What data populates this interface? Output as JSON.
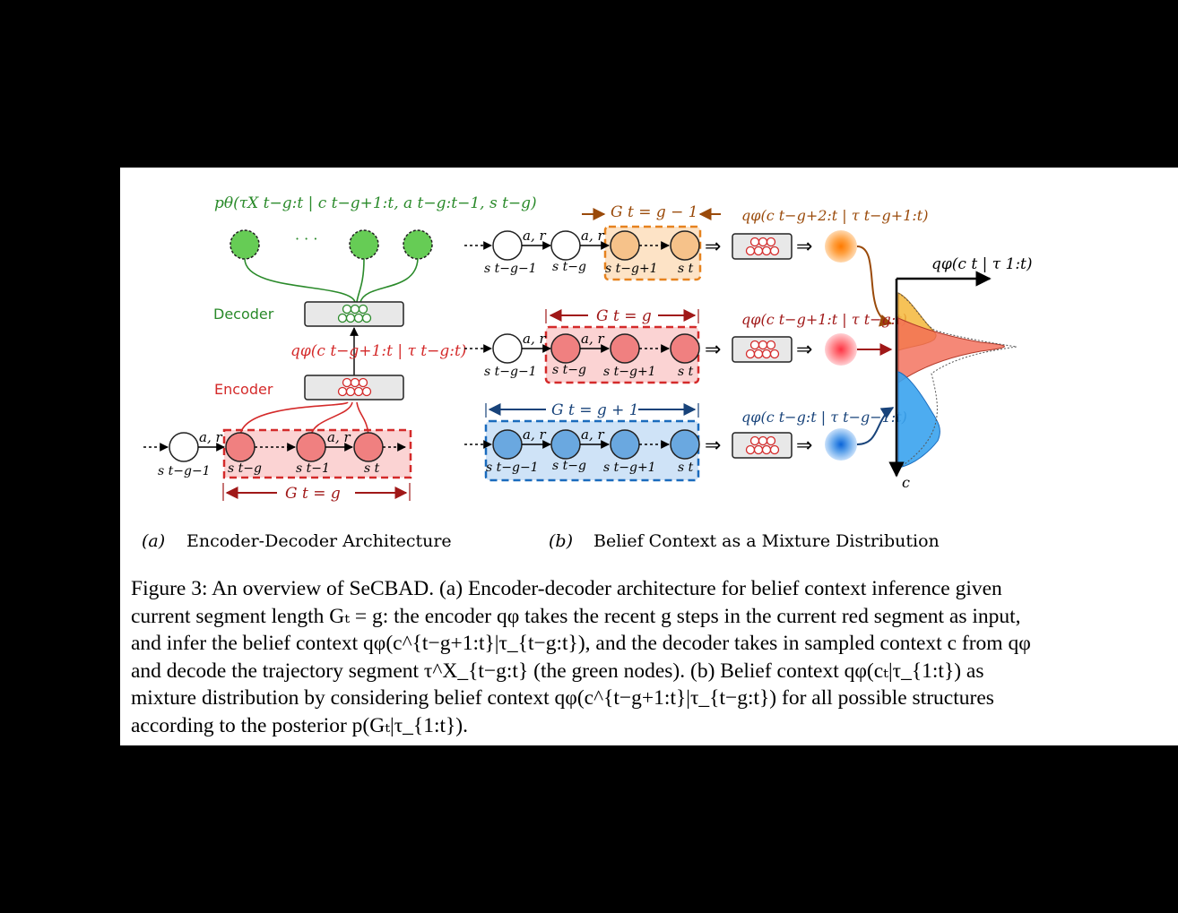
{
  "panel_a": {
    "decoder_label": "Decoder",
    "encoder_label": "Encoder",
    "dots": "· · ·",
    "likelihood_label": "pθ(τX t−g:t | c t−g+1:t, a t−g:t−1, s t−g)",
    "posterior_label": "qφ(c t−g+1:t | τ t−g:t)",
    "node_labels": [
      "s t−g−1",
      "s t−g",
      "s t−1",
      "s t"
    ],
    "edge_label": "a, r",
    "segment_label": "G t = g",
    "subcaption_id": "(a)",
    "subcaption_text": "Encoder-Decoder Architecture"
  },
  "panel_b": {
    "rows": [
      {
        "segment_label": "G t = g − 1",
        "posterior_label": "qφ(c t−g+2:t | τ t−g+1:t)",
        "node_labels": [
          "s t−g−1",
          "s t−g",
          "s t−g+1",
          "s t"
        ]
      },
      {
        "segment_label": "G t = g",
        "posterior_label": "qφ(c t−g+1:t | τ t−g:t)",
        "node_labels": [
          "s t−g−1",
          "s t−g",
          "s t−g+1",
          "s t"
        ]
      },
      {
        "segment_label": "G t = g + 1",
        "posterior_label": "qφ(c t−g:t | τ t−g−1:t)",
        "node_labels": [
          "s t−g−1",
          "s t−g",
          "s t−g+1",
          "s t"
        ]
      }
    ],
    "mixture_label": "qφ(c t | τ 1:t)",
    "axis_label": "c",
    "edge_label": "a, r",
    "subcaption_id": "(b)",
    "subcaption_text": "Belief Context as a Mixture Distribution"
  },
  "caption": "Figure 3: An overview of SeCBAD. (a) Encoder-decoder architecture for belief context inference given current segment length Gₜ = g: the encoder qφ takes the recent g steps in the current red segment as input, and infer the belief context qφ(c^{t−g+1:t}|τ_{t−g:t}), and the decoder takes in sampled context c from qφ and decode the trajectory segment τ^X_{t−g:t} (the green nodes). (b) Belief context qφ(cₜ|τ_{1:t}) as mixture distribution by considering belief context qφ(c^{t−g+1:t}|τ_{t−g:t}) for all possible structures according to the posterior p(Gₜ|τ_{1:t}).",
  "colors": {
    "green": "#2a8a2a",
    "node_green": "#66cc55",
    "red": "#d42a2a",
    "node_red": "#f08080",
    "seg_red_fill": "#fbd3d3",
    "orange": "#e6821e",
    "node_orange": "#f6c28a",
    "seg_orange_fill": "#fde3c6",
    "blue": "#1a6bbd",
    "node_blue": "#6aa8e0",
    "seg_blue_fill": "#cfe3f7",
    "brown_arrow": "#9a4a0a",
    "dark_red_arrow": "#a01818",
    "dark_blue_arrow": "#18437a"
  }
}
